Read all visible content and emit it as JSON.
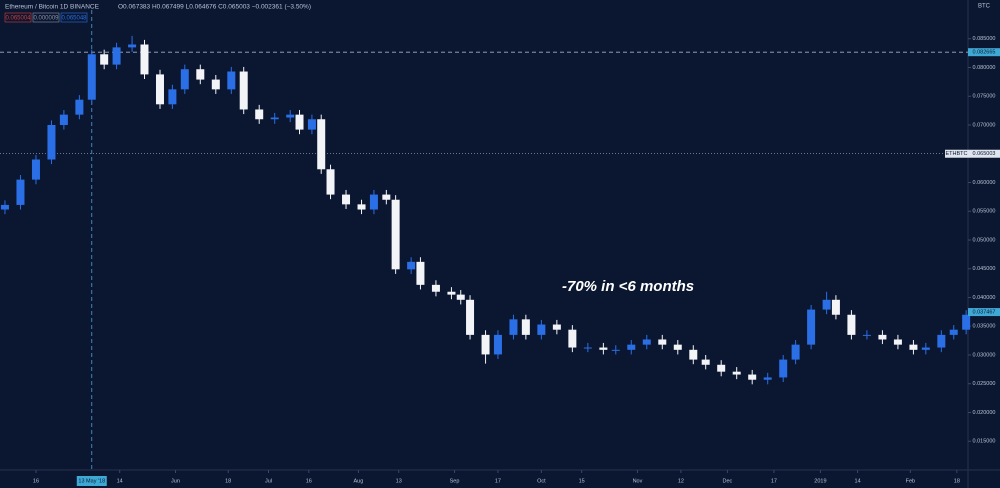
{
  "chart_data": {
    "type": "candlestick",
    "title": "Ethereum / Bitcoin  1D  BINANCE",
    "ohlc_text": "O0.067383 H0.067499 L0.064676 C0.065003 −0.002361 (−3.50%)",
    "order_boxes": [
      "0.065004",
      "0.000009",
      "0.065048"
    ],
    "currency": "BTC",
    "annotation": "-70% in <6 months",
    "up_color": "#2a6fe6",
    "down_color": "#f2f4f8",
    "x": [
      0,
      5,
      10,
      15,
      19,
      24,
      28,
      32,
      36,
      41,
      45,
      50,
      54,
      58,
      63,
      68,
      73,
      77,
      82,
      87,
      92,
      95,
      99,
      102,
      105,
      110,
      115,
      119,
      123,
      126,
      131,
      134,
      139,
      144,
      147,
      150,
      155,
      159,
      164,
      168,
      173,
      178,
      183,
      188,
      193,
      197,
      202,
      207,
      212,
      217,
      222,
      226,
      231,
      236,
      241,
      246,
      251,
      255,
      260,
      265,
      268,
      273,
      278,
      283,
      288,
      293,
      297,
      302,
      306,
      310
    ],
    "open": [
      0.0553,
      0.0561,
      0.0605,
      0.064,
      0.07,
      0.0718,
      0.0744,
      0.0823,
      0.0805,
      0.0835,
      0.084,
      0.0788,
      0.0736,
      0.0762,
      0.0797,
      0.0779,
      0.0762,
      0.0793,
      0.0727,
      0.071,
      0.0713,
      0.0718,
      0.0692,
      0.071,
      0.0623,
      0.0579,
      0.0562,
      0.0553,
      0.0579,
      0.057,
      0.0449,
      0.0462,
      0.0422,
      0.041,
      0.0405,
      0.0396,
      0.0335,
      0.0301,
      0.0335,
      0.0362,
      0.0335,
      0.0353,
      0.0344,
      0.0313,
      0.0313,
      0.0309,
      0.0309,
      0.0318,
      0.0327,
      0.0318,
      0.0309,
      0.0292,
      0.0283,
      0.0271,
      0.0266,
      0.0257,
      0.0261,
      0.0292,
      0.0318,
      0.0379,
      0.0396,
      0.037,
      0.0335,
      0.0335,
      0.0327,
      0.0318,
      0.0309,
      0.0313,
      0.0335,
      0.0344
    ],
    "high": [
      0.0569,
      0.0613,
      0.0648,
      0.0708,
      0.0726,
      0.0752,
      0.0831,
      0.0831,
      0.0843,
      0.0855,
      0.0848,
      0.0796,
      0.077,
      0.0805,
      0.0805,
      0.0787,
      0.0801,
      0.0801,
      0.0735,
      0.0721,
      0.0726,
      0.0726,
      0.0718,
      0.0718,
      0.0631,
      0.0587,
      0.057,
      0.0587,
      0.0587,
      0.0578,
      0.047,
      0.047,
      0.043,
      0.0418,
      0.0413,
      0.0404,
      0.0343,
      0.0343,
      0.037,
      0.037,
      0.0361,
      0.0361,
      0.0352,
      0.0321,
      0.0321,
      0.0317,
      0.0326,
      0.0335,
      0.0335,
      0.0326,
      0.0317,
      0.03,
      0.0291,
      0.0279,
      0.0274,
      0.0269,
      0.03,
      0.0326,
      0.0387,
      0.041,
      0.0404,
      0.0378,
      0.0343,
      0.0343,
      0.0335,
      0.0326,
      0.0321,
      0.0343,
      0.0352,
      0.0378
    ],
    "low": [
      0.0545,
      0.0553,
      0.0597,
      0.0632,
      0.0692,
      0.071,
      0.0736,
      0.0797,
      0.0797,
      0.0827,
      0.078,
      0.0728,
      0.0728,
      0.0754,
      0.0771,
      0.0754,
      0.0754,
      0.0719,
      0.0702,
      0.0702,
      0.0705,
      0.0684,
      0.0684,
      0.0615,
      0.0571,
      0.0554,
      0.0545,
      0.0545,
      0.0562,
      0.0441,
      0.0441,
      0.0414,
      0.0402,
      0.0397,
      0.0388,
      0.0327,
      0.0285,
      0.0293,
      0.0327,
      0.0327,
      0.0327,
      0.0336,
      0.0305,
      0.0305,
      0.0301,
      0.0301,
      0.0301,
      0.031,
      0.031,
      0.0301,
      0.0284,
      0.0275,
      0.0263,
      0.0258,
      0.0249,
      0.0249,
      0.0253,
      0.0284,
      0.031,
      0.0371,
      0.0362,
      0.0327,
      0.0327,
      0.0319,
      0.031,
      0.0301,
      0.0301,
      0.0305,
      0.0327,
      0.0336
    ],
    "close": [
      0.0561,
      0.0605,
      0.064,
      0.07,
      0.0718,
      0.0744,
      0.0823,
      0.0805,
      0.0835,
      0.084,
      0.0788,
      0.0736,
      0.0762,
      0.0797,
      0.0779,
      0.0762,
      0.0793,
      0.0727,
      0.071,
      0.0713,
      0.0718,
      0.0692,
      0.071,
      0.0623,
      0.0579,
      0.0562,
      0.0553,
      0.0579,
      0.057,
      0.0449,
      0.0462,
      0.0422,
      0.041,
      0.0405,
      0.0396,
      0.0335,
      0.0301,
      0.0335,
      0.0362,
      0.0335,
      0.0353,
      0.0344,
      0.0313,
      0.0313,
      0.0309,
      0.0309,
      0.0318,
      0.0327,
      0.0318,
      0.0309,
      0.0292,
      0.0283,
      0.0271,
      0.0266,
      0.0257,
      0.0261,
      0.0292,
      0.0318,
      0.0379,
      0.0396,
      0.037,
      0.0335,
      0.0335,
      0.0327,
      0.0318,
      0.0309,
      0.0313,
      0.0335,
      0.0344,
      0.037
    ],
    "xlim": [
      -1.6,
      310.6
    ],
    "xticks": [
      {
        "value": 10,
        "label": "16"
      },
      {
        "value": 37,
        "label": "14"
      },
      {
        "value": 55,
        "label": "Jun"
      },
      {
        "value": 72,
        "label": "18"
      },
      {
        "value": 85,
        "label": "Jul"
      },
      {
        "value": 98,
        "label": "16"
      },
      {
        "value": 114,
        "label": "Aug"
      },
      {
        "value": 127,
        "label": "13"
      },
      {
        "value": 145,
        "label": "Sep"
      },
      {
        "value": 159,
        "label": "17"
      },
      {
        "value": 173,
        "label": "Oct"
      },
      {
        "value": 186,
        "label": "15"
      },
      {
        "value": 204,
        "label": "Nov"
      },
      {
        "value": 218,
        "label": "12"
      },
      {
        "value": 233,
        "label": "Dec"
      },
      {
        "value": 248,
        "label": "17"
      },
      {
        "value": 263,
        "label": "2019"
      },
      {
        "value": 275,
        "label": "14"
      },
      {
        "value": 292,
        "label": "Feb"
      },
      {
        "value": 307,
        "label": "18"
      }
    ],
    "ylim": [
      0.01,
      0.09
    ],
    "yticks": [
      {
        "value": 0.015,
        "label": "0.015000"
      },
      {
        "value": 0.02,
        "label": "0.020000"
      },
      {
        "value": 0.025,
        "label": "0.025000"
      },
      {
        "value": 0.03,
        "label": "0.030000"
      },
      {
        "value": 0.035,
        "label": "0.035000"
      },
      {
        "value": 0.04,
        "label": "0.040000"
      },
      {
        "value": 0.045,
        "label": "0.045000"
      },
      {
        "value": 0.05,
        "label": "0.050000"
      },
      {
        "value": 0.055,
        "label": "0.055000"
      },
      {
        "value": 0.06,
        "label": "0.060000"
      },
      {
        "value": 0.065,
        "label": "0.065000"
      },
      {
        "value": 0.07,
        "label": "0.070000"
      },
      {
        "value": 0.075,
        "label": "0.075000"
      },
      {
        "value": 0.08,
        "label": "0.080000"
      },
      {
        "value": 0.085,
        "label": "0.085000"
      }
    ],
    "crosshair": {
      "x": 28,
      "x_label": "13 May '18",
      "y": {
        "value": 0.082665,
        "label": "0.082665"
      }
    },
    "price_line": {
      "value": 0.065003,
      "label": "0.065003",
      "symbol": "ETHBTC"
    },
    "last_label": {
      "value": 0.037467,
      "label": "0.037467"
    }
  }
}
